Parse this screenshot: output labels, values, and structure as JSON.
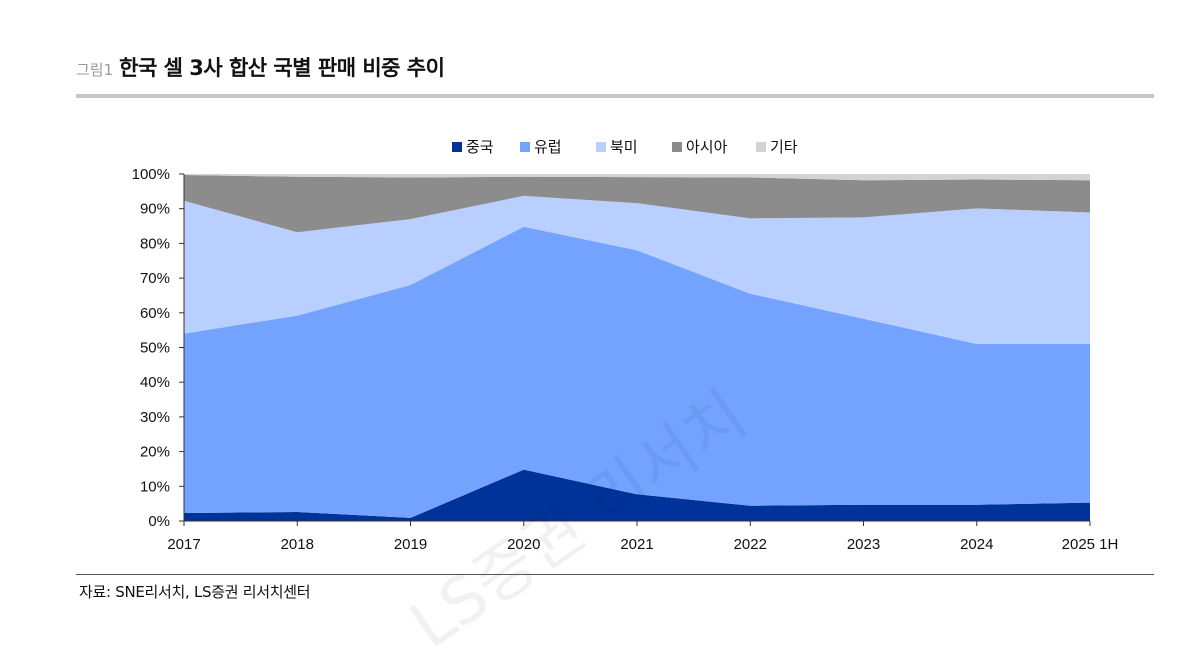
{
  "header": {
    "fig_label": "그림1",
    "title": "한국 셀 3사 합산 국별 판매 비중 추이"
  },
  "source": "자료: SNE리서치, LS증권 리서치센터",
  "watermark": "LS증권 리서치",
  "colors": {
    "중국": "#00339a",
    "유럽": "#73a2ff",
    "북미": "#b8cfff",
    "아시아": "#8c8c8c",
    "기타": "#d3d3d3"
  },
  "chart_data": {
    "type": "area",
    "stacked": true,
    "title": "",
    "xlabel": "",
    "ylabel": "",
    "categories": [
      "2017",
      "2018",
      "2019",
      "2020",
      "2021",
      "2022",
      "2023",
      "2024",
      "2025 1H"
    ],
    "y_ticks": [
      "0%",
      "10%",
      "20%",
      "30%",
      "40%",
      "50%",
      "60%",
      "70%",
      "80%",
      "90%",
      "100%"
    ],
    "ylim": [
      0,
      100
    ],
    "legend_position": "top-center",
    "series": [
      {
        "name": "중국",
        "values": [
          2.3,
          2.6,
          0.9,
          14.8,
          7.7,
          4.4,
          4.7,
          4.7,
          5.3
        ]
      },
      {
        "name": "유럽",
        "values": [
          51.7,
          56.6,
          67.1,
          70.0,
          70.3,
          61.1,
          53.6,
          46.3,
          45.7
        ]
      },
      {
        "name": "북미",
        "values": [
          38.3,
          24.0,
          19.0,
          8.9,
          13.6,
          21.7,
          29.2,
          39.1,
          37.9
        ]
      },
      {
        "name": "아시아",
        "values": [
          7.4,
          16.0,
          12.0,
          5.5,
          7.5,
          11.8,
          10.7,
          8.3,
          9.3
        ]
      },
      {
        "name": "기타",
        "values": [
          0.3,
          0.8,
          1.0,
          0.8,
          0.9,
          1.0,
          1.8,
          1.6,
          1.8
        ]
      }
    ]
  }
}
